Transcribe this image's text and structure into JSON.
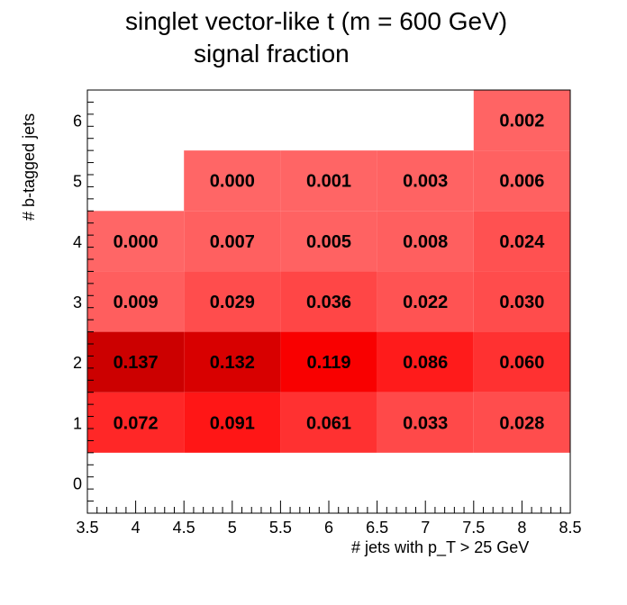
{
  "chart_data": {
    "type": "heatmap",
    "title": "singlet vector-like t (m = 600 GeV)",
    "subtitle": "signal fraction",
    "xlabel": "# jets with p_T > 25 GeV",
    "ylabel": "# b-tagged jets",
    "xlim": [
      3.5,
      8.5
    ],
    "ylim": [
      -0.5,
      6.5
    ],
    "x_ticks": [
      "3.5",
      "4",
      "4.5",
      "5",
      "5.5",
      "6",
      "6.5",
      "7",
      "7.5",
      "8",
      "8.5"
    ],
    "y_ticks": [
      "0",
      "1",
      "2",
      "3",
      "4",
      "5",
      "6"
    ],
    "cells": [
      {
        "x": 4,
        "y": 1,
        "value": "0.072"
      },
      {
        "x": 5,
        "y": 1,
        "value": "0.091"
      },
      {
        "x": 6,
        "y": 1,
        "value": "0.061"
      },
      {
        "x": 7,
        "y": 1,
        "value": "0.033"
      },
      {
        "x": 8,
        "y": 1,
        "value": "0.028"
      },
      {
        "x": 4,
        "y": 2,
        "value": "0.137"
      },
      {
        "x": 5,
        "y": 2,
        "value": "0.132"
      },
      {
        "x": 6,
        "y": 2,
        "value": "0.119"
      },
      {
        "x": 7,
        "y": 2,
        "value": "0.086"
      },
      {
        "x": 8,
        "y": 2,
        "value": "0.060"
      },
      {
        "x": 4,
        "y": 3,
        "value": "0.009"
      },
      {
        "x": 5,
        "y": 3,
        "value": "0.029"
      },
      {
        "x": 6,
        "y": 3,
        "value": "0.036"
      },
      {
        "x": 7,
        "y": 3,
        "value": "0.022"
      },
      {
        "x": 8,
        "y": 3,
        "value": "0.030"
      },
      {
        "x": 4,
        "y": 4,
        "value": "0.000"
      },
      {
        "x": 5,
        "y": 4,
        "value": "0.007"
      },
      {
        "x": 6,
        "y": 4,
        "value": "0.005"
      },
      {
        "x": 7,
        "y": 4,
        "value": "0.008"
      },
      {
        "x": 8,
        "y": 4,
        "value": "0.024"
      },
      {
        "x": 5,
        "y": 5,
        "value": "0.000"
      },
      {
        "x": 6,
        "y": 5,
        "value": "0.001"
      },
      {
        "x": 7,
        "y": 5,
        "value": "0.003"
      },
      {
        "x": 8,
        "y": 5,
        "value": "0.006"
      },
      {
        "x": 8,
        "y": 6,
        "value": "0.002"
      }
    ]
  }
}
